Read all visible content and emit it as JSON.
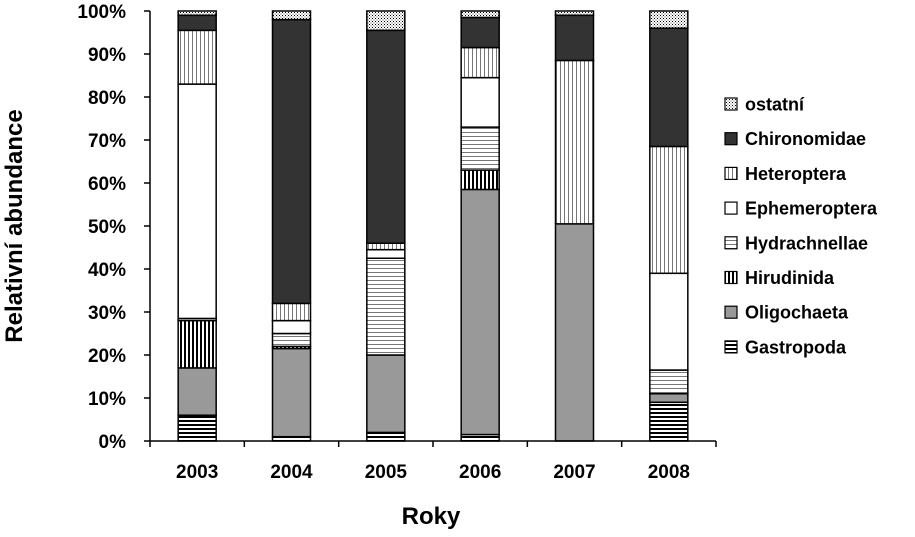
{
  "chart_data": {
    "type": "bar",
    "stacked": true,
    "normalized": true,
    "title": "",
    "xlabel": "Roky",
    "ylabel": "Relativní abundance",
    "ylim": [
      0,
      100
    ],
    "y_ticks": [
      "0%",
      "10%",
      "20%",
      "30%",
      "40%",
      "50%",
      "60%",
      "70%",
      "80%",
      "90%",
      "100%"
    ],
    "categories": [
      "2003",
      "2004",
      "2005",
      "2006",
      "2007",
      "2008"
    ],
    "grid": false,
    "legend_position": "right",
    "series": [
      {
        "name": "Gastropoda",
        "pattern": "hstripe-dense",
        "values": [
          6,
          1,
          2,
          1.5,
          0,
          9
        ]
      },
      {
        "name": "Oligochaeta",
        "pattern": "gray",
        "values": [
          11,
          20.5,
          18,
          57,
          50.5,
          2
        ]
      },
      {
        "name": "Hirudinida",
        "pattern": "vstripe",
        "values": [
          11,
          0.5,
          0,
          4.5,
          0,
          0
        ]
      },
      {
        "name": "Hydrachnellae",
        "pattern": "hstripe-light",
        "values": [
          0.5,
          3,
          22.5,
          10,
          0,
          5.5
        ]
      },
      {
        "name": "Ephemeroptera",
        "pattern": "white",
        "values": [
          54.5,
          3,
          2,
          11.5,
          0,
          22.5
        ]
      },
      {
        "name": "Heteroptera",
        "pattern": "vstripe-light",
        "values": [
          12.5,
          4,
          1.5,
          7,
          38,
          29.5
        ]
      },
      {
        "name": "Chironomidae",
        "pattern": "dark",
        "values": [
          3.5,
          66,
          49.5,
          7,
          10.5,
          27.5
        ]
      },
      {
        "name": "ostatní",
        "pattern": "dots",
        "values": [
          1,
          2,
          4.5,
          1.5,
          1,
          4
        ]
      }
    ],
    "colors": {
      "dark": "#333333",
      "gray": "#999999",
      "stroke": "#000000"
    }
  }
}
